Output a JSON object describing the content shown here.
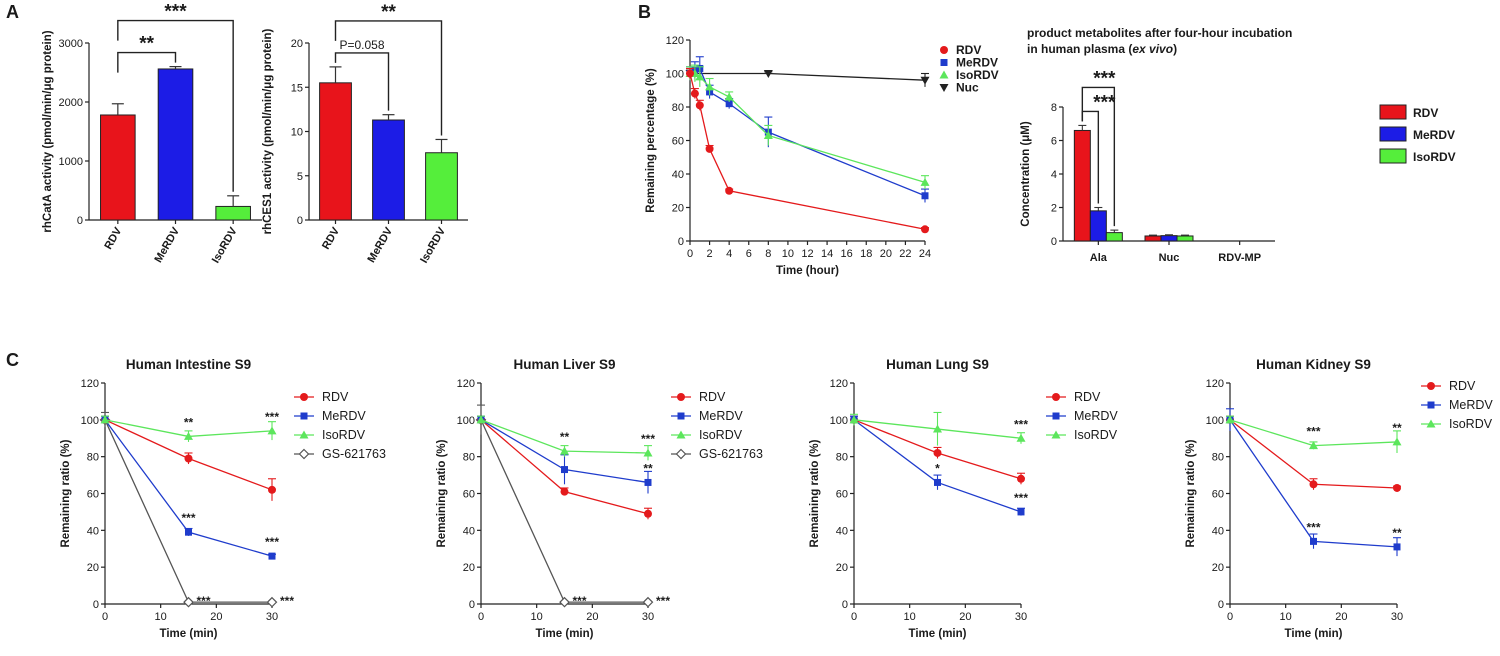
{
  "panel_letters": [
    "A",
    "B",
    "C"
  ],
  "colors": {
    "RDV": "#e41a1c",
    "MeRDV": "#1f3ccc",
    "IsoRDV": "#5ce65c",
    "GS": "#555555",
    "Nuc": "#222222",
    "bar_RDV": "#e8141b",
    "bar_MeRDV": "#1c1ce6",
    "bar_IsoRDV": "#55ee3b"
  },
  "chart_data": [
    {
      "id": "A1",
      "type": "bar",
      "title": "",
      "xlabel": "",
      "ylabel": "rhCatA activity (pmol/min/μg protein)",
      "categories": [
        "RDV",
        "MeRDV",
        "IsoRDV"
      ],
      "values": [
        1780,
        2560,
        230
      ],
      "errors": [
        190,
        40,
        180
      ],
      "ylim": [
        0,
        3000
      ],
      "yticks": [
        "0",
        "1000",
        "2000",
        "3000"
      ],
      "significance": [
        {
          "from": "RDV",
          "to": "MeRDV",
          "label": "**"
        },
        {
          "from": "RDV",
          "to": "IsoRDV",
          "label": "***"
        }
      ]
    },
    {
      "id": "A2",
      "type": "bar",
      "title": "",
      "xlabel": "",
      "ylabel": "rhCES1 activity (pmol/min/μg protein)",
      "categories": [
        "RDV",
        "MeRDV",
        "IsoRDV"
      ],
      "values": [
        15.5,
        11.3,
        7.6
      ],
      "errors": [
        1.8,
        0.6,
        1.5
      ],
      "ylim": [
        0,
        20
      ],
      "yticks": [
        "0",
        "5",
        "10",
        "15",
        "20"
      ],
      "significance": [
        {
          "from": "RDV",
          "to": "MeRDV",
          "label": "P=0.058"
        },
        {
          "from": "RDV",
          "to": "IsoRDV",
          "label": "**"
        }
      ]
    },
    {
      "id": "B1",
      "type": "line",
      "title": "",
      "xlabel": "Time (hour)",
      "ylabel": "Remaining percentage (%)",
      "xlim": [
        0,
        24
      ],
      "ylim": [
        0,
        120
      ],
      "xticks": [
        "0",
        "2",
        "4",
        "6",
        "8",
        "10",
        "12",
        "14",
        "16",
        "18",
        "20",
        "22",
        "24"
      ],
      "yticks": [
        "0",
        "20",
        "40",
        "60",
        "80",
        "100",
        "120"
      ],
      "legend": [
        "RDV",
        "MeRDV",
        "IsoRDV",
        "Nuc"
      ],
      "series": [
        {
          "name": "RDV",
          "x": [
            0,
            0.5,
            1,
            2,
            4,
            24
          ],
          "y": [
            100,
            88,
            81,
            55,
            30,
            7
          ],
          "err": [
            3,
            3,
            3,
            2,
            1,
            1
          ]
        },
        {
          "name": "MeRDV",
          "x": [
            0,
            0.5,
            1,
            2,
            4,
            8,
            24
          ],
          "y": [
            100,
            102,
            103,
            89,
            82,
            65,
            27
          ],
          "err": [
            4,
            5,
            7,
            4,
            3,
            9,
            4
          ]
        },
        {
          "name": "IsoRDV",
          "x": [
            0,
            0.5,
            1,
            2,
            4,
            8,
            24
          ],
          "y": [
            100,
            100,
            98,
            92,
            86,
            63,
            35
          ],
          "err": [
            4,
            5,
            6,
            5,
            3,
            6,
            4
          ]
        },
        {
          "name": "Nuc",
          "x": [
            0,
            8,
            24
          ],
          "y": [
            100,
            100,
            96
          ],
          "err": [
            2,
            1,
            4
          ]
        }
      ]
    },
    {
      "id": "B2",
      "type": "bar",
      "title": "product metabolites after four-hour incubation",
      "title_line2": "in human plasma (",
      "title_italic": "ex vivo",
      "title_close": ")",
      "xlabel": "",
      "ylabel": "Concentration (μM)",
      "categories": [
        "Ala",
        "Nuc",
        "RDV-MP"
      ],
      "legend": [
        "RDV",
        "MeRDV",
        "IsoRDV"
      ],
      "ylim": [
        0,
        8
      ],
      "yticks": [
        "0",
        "2",
        "4",
        "6",
        "8"
      ],
      "series": [
        {
          "name": "RDV",
          "values": [
            6.6,
            0.3,
            0.0
          ],
          "errors": [
            0.3,
            0.05,
            0
          ]
        },
        {
          "name": "MeRDV",
          "values": [
            1.8,
            0.32,
            0.0
          ],
          "errors": [
            0.2,
            0.05,
            0
          ]
        },
        {
          "name": "IsoRDV",
          "values": [
            0.5,
            0.3,
            0.0
          ],
          "errors": [
            0.15,
            0.05,
            0
          ]
        }
      ],
      "significance": [
        {
          "from": "RDV",
          "to": "MeRDV",
          "label": "***"
        },
        {
          "from": "RDV",
          "to": "IsoRDV",
          "label": "***"
        }
      ]
    },
    {
      "id": "C1",
      "type": "line",
      "title": "Human Intestine S9",
      "xlabel": "Time (min)",
      "ylabel": "Remaining ratio (%)",
      "xlim": [
        0,
        30
      ],
      "ylim": [
        0,
        120
      ],
      "xticks": [
        "0",
        "10",
        "20",
        "30"
      ],
      "yticks": [
        "0",
        "20",
        "40",
        "60",
        "80",
        "100",
        "120"
      ],
      "legend": [
        "RDV",
        "MeRDV",
        "IsoRDV",
        "GS-621763"
      ],
      "series": [
        {
          "name": "RDV",
          "x": [
            0,
            15,
            30
          ],
          "y": [
            100,
            79,
            62
          ],
          "err": [
            2,
            3,
            6
          ]
        },
        {
          "name": "MeRDV",
          "x": [
            0,
            15,
            30
          ],
          "y": [
            100,
            39,
            26
          ],
          "err": [
            2,
            2,
            1
          ]
        },
        {
          "name": "IsoRDV",
          "x": [
            0,
            15,
            30
          ],
          "y": [
            100,
            91,
            94
          ],
          "err": [
            2,
            3,
            5
          ]
        },
        {
          "name": "GS-621763",
          "x": [
            0,
            15,
            30
          ],
          "y": [
            100,
            1,
            1
          ],
          "err": [
            4,
            0.5,
            0.5
          ]
        }
      ],
      "annotations": [
        {
          "x": 15,
          "y": 91,
          "label": "**"
        },
        {
          "x": 30,
          "y": 94,
          "label": "***"
        },
        {
          "x": 15,
          "y": 39,
          "label": "***"
        },
        {
          "x": 30,
          "y": 26,
          "label": "***"
        },
        {
          "x": 15,
          "y": 1,
          "label": "***"
        },
        {
          "x": 30,
          "y": 1,
          "label": "***"
        }
      ]
    },
    {
      "id": "C2",
      "type": "line",
      "title": "Human Liver S9",
      "xlabel": "Time (min)",
      "ylabel": "Remaining ratio (%)",
      "xlim": [
        0,
        30
      ],
      "ylim": [
        0,
        120
      ],
      "xticks": [
        "0",
        "10",
        "20",
        "30"
      ],
      "yticks": [
        "0",
        "20",
        "40",
        "60",
        "80",
        "100",
        "120"
      ],
      "legend": [
        "RDV",
        "MeRDV",
        "IsoRDV",
        "GS-621763"
      ],
      "series": [
        {
          "name": "RDV",
          "x": [
            0,
            15,
            30
          ],
          "y": [
            100,
            61,
            49
          ],
          "err": [
            2,
            2,
            3
          ]
        },
        {
          "name": "MeRDV",
          "x": [
            0,
            15,
            30
          ],
          "y": [
            100,
            73,
            66
          ],
          "err": [
            2,
            8,
            6
          ]
        },
        {
          "name": "IsoRDV",
          "x": [
            0,
            15,
            30
          ],
          "y": [
            100,
            83,
            82
          ],
          "err": [
            2,
            3,
            4
          ]
        },
        {
          "name": "GS-621763",
          "x": [
            0,
            15,
            30
          ],
          "y": [
            100,
            1,
            1
          ],
          "err": [
            8,
            0.5,
            0.5
          ]
        }
      ],
      "annotations": [
        {
          "x": 15,
          "y": 83,
          "label": "**"
        },
        {
          "x": 30,
          "y": 82,
          "label": "***"
        },
        {
          "x": 30,
          "y": 66,
          "label": "**"
        },
        {
          "x": 15,
          "y": 1,
          "label": "***"
        },
        {
          "x": 30,
          "y": 1,
          "label": "***"
        }
      ]
    },
    {
      "id": "C3",
      "type": "line",
      "title": "Human Lung S9",
      "xlabel": "Time (min)",
      "ylabel": "Remaining ratio (%)",
      "xlim": [
        0,
        30
      ],
      "ylim": [
        0,
        120
      ],
      "xticks": [
        "0",
        "10",
        "20",
        "30"
      ],
      "yticks": [
        "0",
        "20",
        "40",
        "60",
        "80",
        "100",
        "120"
      ],
      "legend": [
        "RDV",
        "MeRDV",
        "IsoRDV"
      ],
      "series": [
        {
          "name": "RDV",
          "x": [
            0,
            15,
            30
          ],
          "y": [
            100,
            82,
            68
          ],
          "err": [
            2,
            3,
            3
          ]
        },
        {
          "name": "MeRDV",
          "x": [
            0,
            15,
            30
          ],
          "y": [
            100,
            66,
            50
          ],
          "err": [
            2,
            4,
            2
          ]
        },
        {
          "name": "IsoRDV",
          "x": [
            0,
            15,
            30
          ],
          "y": [
            100,
            95,
            90
          ],
          "err": [
            3,
            9,
            3
          ]
        }
      ],
      "annotations": [
        {
          "x": 30,
          "y": 90,
          "label": "***"
        },
        {
          "x": 15,
          "y": 66,
          "label": "*"
        },
        {
          "x": 30,
          "y": 50,
          "label": "***"
        }
      ]
    },
    {
      "id": "C4",
      "type": "line",
      "title": "Human Kidney S9",
      "xlabel": "Time (min)",
      "ylabel": "Remaining ratio (%)",
      "xlim": [
        0,
        30
      ],
      "ylim": [
        0,
        120
      ],
      "xticks": [
        "0",
        "10",
        "20",
        "30"
      ],
      "yticks": [
        "0",
        "20",
        "40",
        "60",
        "80",
        "100",
        "120"
      ],
      "legend": [
        "RDV",
        "MeRDV",
        "IsoRDV"
      ],
      "series": [
        {
          "name": "RDV",
          "x": [
            0,
            15,
            30
          ],
          "y": [
            100,
            65,
            63
          ],
          "err": [
            2,
            3,
            1
          ]
        },
        {
          "name": "MeRDV",
          "x": [
            0,
            15,
            30
          ],
          "y": [
            100,
            34,
            31
          ],
          "err": [
            6,
            4,
            5
          ]
        },
        {
          "name": "IsoRDV",
          "x": [
            0,
            15,
            30
          ],
          "y": [
            100,
            86,
            88
          ],
          "err": [
            2,
            2,
            6
          ]
        }
      ],
      "annotations": [
        {
          "x": 15,
          "y": 86,
          "label": "***"
        },
        {
          "x": 30,
          "y": 88,
          "label": "**"
        },
        {
          "x": 15,
          "y": 34,
          "label": "***"
        },
        {
          "x": 30,
          "y": 31,
          "label": "**"
        }
      ]
    }
  ]
}
